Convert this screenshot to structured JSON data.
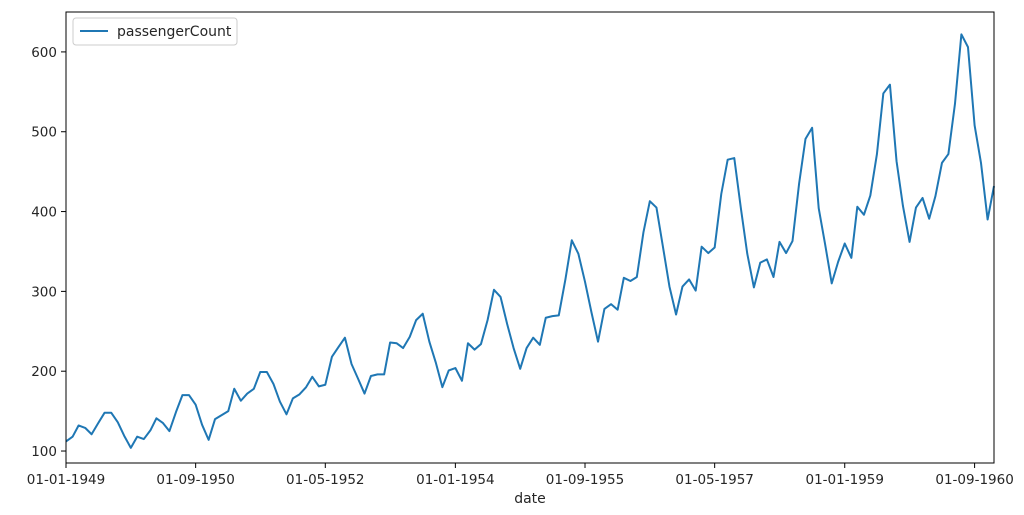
{
  "chart_data": {
    "type": "line",
    "title": "",
    "xlabel": "date",
    "ylabel": "",
    "legend": {
      "placement": "top-left",
      "entries": [
        "passengerCount"
      ]
    },
    "grid": false,
    "x_range": [
      "01-01-1949",
      "01-12-1960"
    ],
    "ylim": [
      85,
      650
    ],
    "x_tick_labels": [
      "01-01-1949",
      "01-09-1950",
      "01-05-1952",
      "01-01-1954",
      "01-09-1955",
      "01-05-1957",
      "01-01-1959",
      "01-09-1960"
    ],
    "y_tick_labels": [
      "100",
      "200",
      "300",
      "400",
      "500",
      "600"
    ],
    "y_ticks": [
      100,
      200,
      300,
      400,
      500,
      600
    ],
    "colors": {
      "line": "#1f77b4",
      "axes": "#000000"
    },
    "series": [
      {
        "name": "passengerCount",
        "x": [
          "01-01-1949",
          "01-02-1949",
          "01-03-1949",
          "01-04-1949",
          "01-05-1949",
          "01-06-1949",
          "01-07-1949",
          "01-08-1949",
          "01-09-1949",
          "01-10-1949",
          "01-11-1949",
          "01-12-1949",
          "01-01-1950",
          "01-02-1950",
          "01-03-1950",
          "01-04-1950",
          "01-05-1950",
          "01-06-1950",
          "01-07-1950",
          "01-08-1950",
          "01-09-1950",
          "01-10-1950",
          "01-11-1950",
          "01-12-1950",
          "01-01-1951",
          "01-02-1951",
          "01-03-1951",
          "01-04-1951",
          "01-05-1951",
          "01-06-1951",
          "01-07-1951",
          "01-08-1951",
          "01-09-1951",
          "01-10-1951",
          "01-11-1951",
          "01-12-1951",
          "01-01-1952",
          "01-02-1952",
          "01-03-1952",
          "01-04-1952",
          "01-05-1952",
          "01-06-1952",
          "01-07-1952",
          "01-08-1952",
          "01-09-1952",
          "01-10-1952",
          "01-11-1952",
          "01-12-1952",
          "01-01-1953",
          "01-02-1953",
          "01-03-1953",
          "01-04-1953",
          "01-05-1953",
          "01-06-1953",
          "01-07-1953",
          "01-08-1953",
          "01-09-1953",
          "01-10-1953",
          "01-11-1953",
          "01-12-1953",
          "01-01-1954",
          "01-02-1954",
          "01-03-1954",
          "01-04-1954",
          "01-05-1954",
          "01-06-1954",
          "01-07-1954",
          "01-08-1954",
          "01-09-1954",
          "01-10-1954",
          "01-11-1954",
          "01-12-1954",
          "01-01-1955",
          "01-02-1955",
          "01-03-1955",
          "01-04-1955",
          "01-05-1955",
          "01-06-1955",
          "01-07-1955",
          "01-08-1955",
          "01-09-1955",
          "01-10-1955",
          "01-11-1955",
          "01-12-1955",
          "01-01-1956",
          "01-02-1956",
          "01-03-1956",
          "01-04-1956",
          "01-05-1956",
          "01-06-1956",
          "01-07-1956",
          "01-08-1956",
          "01-09-1956",
          "01-10-1956",
          "01-11-1956",
          "01-12-1956",
          "01-01-1957",
          "01-02-1957",
          "01-03-1957",
          "01-04-1957",
          "01-05-1957",
          "01-06-1957",
          "01-07-1957",
          "01-08-1957",
          "01-09-1957",
          "01-10-1957",
          "01-11-1957",
          "01-12-1957",
          "01-01-1958",
          "01-02-1958",
          "01-03-1958",
          "01-04-1958",
          "01-05-1958",
          "01-06-1958",
          "01-07-1958",
          "01-08-1958",
          "01-09-1958",
          "01-10-1958",
          "01-11-1958",
          "01-12-1958",
          "01-01-1959",
          "01-02-1959",
          "01-03-1959",
          "01-04-1959",
          "01-05-1959",
          "01-06-1959",
          "01-07-1959",
          "01-08-1959",
          "01-09-1959",
          "01-10-1959",
          "01-11-1959",
          "01-12-1959",
          "01-01-1960",
          "01-02-1960",
          "01-03-1960",
          "01-04-1960",
          "01-05-1960",
          "01-06-1960",
          "01-07-1960",
          "01-08-1960",
          "01-09-1960",
          "01-10-1960",
          "01-11-1960",
          "01-12-1960"
        ],
        "values": [
          112,
          118,
          132,
          129,
          121,
          135,
          148,
          148,
          136,
          119,
          104,
          118,
          115,
          126,
          141,
          135,
          125,
          149,
          170,
          170,
          158,
          133,
          114,
          140,
          145,
          150,
          178,
          163,
          172,
          178,
          199,
          199,
          184,
          162,
          146,
          166,
          171,
          180,
          193,
          181,
          183,
          218,
          230,
          242,
          209,
          191,
          172,
          194,
          196,
          196,
          236,
          235,
          229,
          243,
          264,
          272,
          237,
          211,
          180,
          201,
          204,
          188,
          235,
          227,
          234,
          264,
          302,
          293,
          259,
          229,
          203,
          229,
          242,
          233,
          267,
          269,
          270,
          315,
          364,
          347,
          312,
          274,
          237,
          278,
          284,
          277,
          317,
          313,
          318,
          374,
          413,
          405,
          355,
          306,
          271,
          306,
          315,
          301,
          356,
          348,
          355,
          422,
          465,
          467,
          404,
          347,
          305,
          336,
          340,
          318,
          362,
          348,
          363,
          435,
          491,
          505,
          404,
          359,
          310,
          337,
          360,
          342,
          406,
          396,
          420,
          472,
          548,
          559,
          463,
          407,
          362,
          405,
          417,
          391,
          419,
          461,
          472,
          535,
          622,
          606,
          508,
          461,
          390,
          432
        ]
      }
    ]
  }
}
